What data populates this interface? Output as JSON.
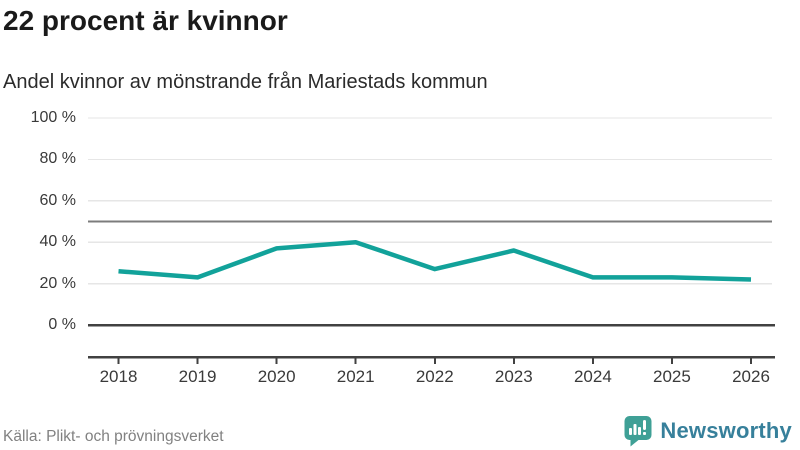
{
  "title": "22 procent är kvinnor",
  "subtitle": "Andel kvinnor av mönstrande från Mariestads kommun",
  "source": "Källa: Plikt- och prövningsverket",
  "branding": {
    "name": "Newsworthy",
    "icon": "newsworthy-speech-bubble-chart-icon",
    "icon_color": "#3fa096",
    "icon_glyph_color": "#ffffff",
    "text_color": "#37809b"
  },
  "colors": {
    "line": "#12a29a",
    "grid_light": "#e6e6e6",
    "reference_line": "#7c7c7c",
    "axis_dark": "#414141",
    "title_text": "#1a1a1a",
    "subtitle_text": "#2b2b2b",
    "tick_text": "#3a3a3a",
    "source_text": "#818181",
    "background": "#ffffff"
  },
  "chart_data": {
    "type": "line",
    "title": "22 procent är kvinnor",
    "subtitle": "Andel kvinnor av mönstrande från Mariestads kommun",
    "x": [
      2018,
      2019,
      2020,
      2021,
      2022,
      2023,
      2024,
      2025,
      2026
    ],
    "series": [
      {
        "name": "Andel kvinnor av mönstrande",
        "values": [
          26,
          23,
          37,
          40,
          27,
          36,
          23,
          23,
          22
        ]
      }
    ],
    "unit": "%",
    "ylim": [
      0,
      100
    ],
    "yticks": [
      0,
      20,
      40,
      60,
      80,
      100
    ],
    "ytick_format": "{v} %",
    "reference_line": 50,
    "grid": true,
    "legend": false,
    "xlabel": "",
    "ylabel": ""
  }
}
